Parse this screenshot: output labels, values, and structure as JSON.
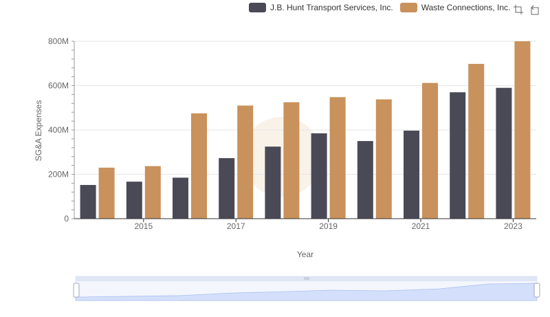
{
  "chart_data": {
    "type": "bar",
    "xlabel": "Year",
    "ylabel": "SG&A Expenses",
    "categories": [
      "2014",
      "2015",
      "2016",
      "2017",
      "2018",
      "2019",
      "2020",
      "2021",
      "2022",
      "2023"
    ],
    "x_tick_labels": [
      "2015",
      "2017",
      "2019",
      "2021",
      "2023"
    ],
    "y_tick_labels": [
      "0",
      "200M",
      "400M",
      "600M",
      "800M"
    ],
    "ylim": [
      0,
      800000000
    ],
    "grid": true,
    "legend_position": "top-right",
    "series": [
      {
        "name": "J.B. Hunt Transport Services, Inc.",
        "color": "#4a4a57",
        "values": [
          152000000,
          167000000,
          185000000,
          273000000,
          325000000,
          385000000,
          350000000,
          397000000,
          570000000,
          590000000
        ]
      },
      {
        "name": "Waste Connections, Inc.",
        "color": "#c9915b",
        "values": [
          230000000,
          237000000,
          475000000,
          510000000,
          525000000,
          548000000,
          538000000,
          612000000,
          698000000,
          800000000
        ]
      }
    ]
  },
  "icons": {
    "zoom": "zoom-icon",
    "restore": "restore-icon"
  }
}
